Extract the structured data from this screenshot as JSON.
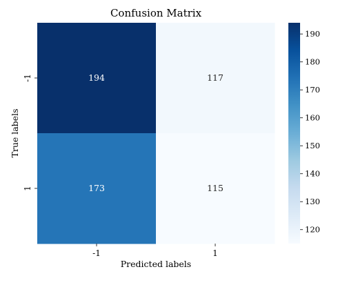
{
  "chart_data": {
    "type": "heatmap",
    "title": "Confusion Matrix",
    "xlabel": "Predicted labels",
    "ylabel": "True labels",
    "x_categories": [
      "-1",
      "1"
    ],
    "y_categories": [
      "-1",
      "1"
    ],
    "values": [
      [
        194,
        117
      ],
      [
        173,
        115
      ]
    ],
    "colormap": "Blues",
    "colorbar": {
      "min": 115,
      "max": 194,
      "ticks": [
        120,
        130,
        140,
        150,
        160,
        170,
        180,
        190
      ]
    },
    "colors": {
      "low": "#f7fbff",
      "high": "#08306b"
    }
  }
}
